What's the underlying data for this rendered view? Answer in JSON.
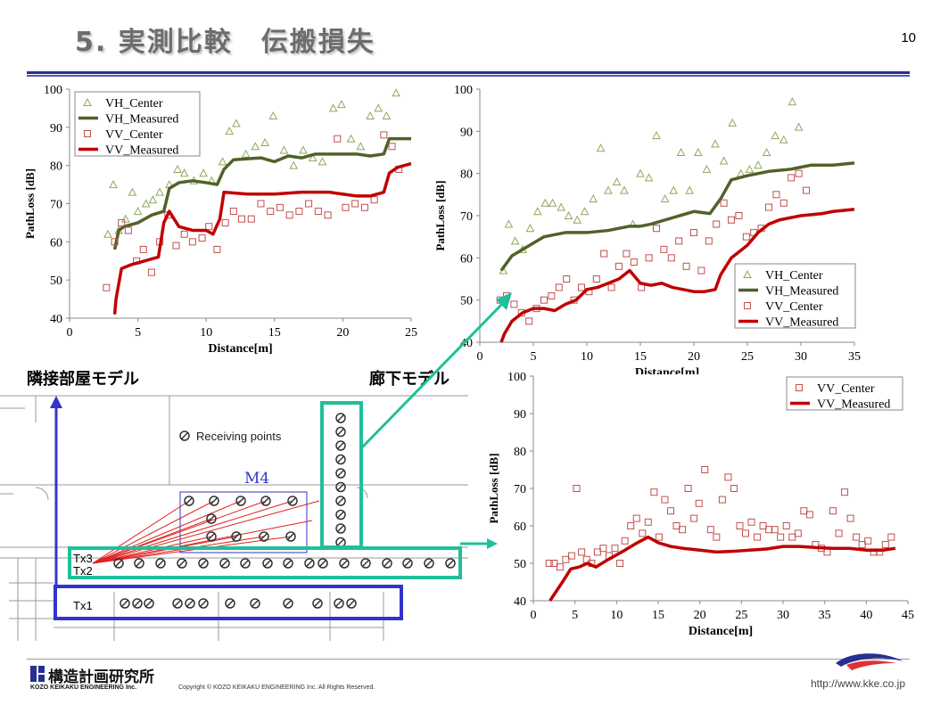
{
  "slide": {
    "title": "5. 実測比較　伝搬損失",
    "page_number": "10",
    "label_adjacent_room": "隣接部屋モデル",
    "label_corridor": "廊下モデル",
    "logo_jp": "構造計画研究所",
    "logo_en": "KOZO KEIKAKU ENGINEERING Inc.",
    "copyright": "Copyright © KOZO KEIKAKU ENGINEERING Inc. All Rights Reserved.",
    "url": "http://www.kke.co.jp",
    "brand_color": "#26308f"
  },
  "floorplan": {
    "legend_label": "Receiving points",
    "room_label": "M4",
    "tx_labels": [
      "Tx3",
      "Tx2",
      "Tx1"
    ],
    "colors": {
      "adjacent_frame": "#3333cc",
      "corridor_frame": "#1fbf9a",
      "rays": "#e02020"
    }
  },
  "chart_data": [
    {
      "type": "scatter",
      "xlabel": "Distance[m]",
      "ylabel": "PathLoss [dB]",
      "xlim": [
        0,
        25
      ],
      "ylim": [
        40,
        100
      ],
      "xticks": [
        0,
        5,
        10,
        15,
        20,
        25
      ],
      "yticks": [
        40,
        50,
        60,
        70,
        80,
        90,
        100
      ],
      "legend_position": "top-left",
      "series": [
        {
          "name": "VH_Center",
          "kind": "scatter",
          "marker": "triangle",
          "color": "#8fa85a",
          "x": [
            2.8,
            3.2,
            3.6,
            4.1,
            4.6,
            5.0,
            5.6,
            6.1,
            6.6,
            7.3,
            7.9,
            8.4,
            9.1,
            9.8,
            10.4,
            11.2,
            11.7,
            12.2,
            12.9,
            13.6,
            14.3,
            14.9,
            15.7,
            16.4,
            17.1,
            17.8,
            18.5,
            19.3,
            19.9,
            20.6,
            21.3,
            22.0,
            22.6,
            23.2,
            23.9
          ],
          "y": [
            62,
            75,
            63,
            66,
            73,
            68,
            70,
            71,
            73,
            75,
            79,
            78,
            76,
            78,
            76,
            81,
            89,
            91,
            83,
            85,
            86,
            93,
            84,
            80,
            84,
            82,
            81,
            95,
            96,
            87,
            85,
            93,
            95,
            93,
            99
          ]
        },
        {
          "name": "VH_Measured",
          "kind": "line",
          "color": "#4f6228",
          "x": [
            3.3,
            3.6,
            4.0,
            5.0,
            6.0,
            6.9,
            7.3,
            8.0,
            9.0,
            10.0,
            10.8,
            11.3,
            12.0,
            14.0,
            15.0,
            16.0,
            17.0,
            18.0,
            19.0,
            20.0,
            21.0,
            22.0,
            23.0,
            23.4,
            24.0,
            25.0
          ],
          "y": [
            58,
            63,
            64,
            65,
            67,
            68,
            74,
            75.5,
            76,
            75.5,
            75,
            79,
            81.5,
            82,
            81,
            82.5,
            82,
            83,
            83,
            83,
            83,
            82.5,
            83,
            87,
            87,
            87
          ]
        },
        {
          "name": "VV_Center",
          "kind": "scatter",
          "marker": "square",
          "color": "#c0504d",
          "x": [
            2.7,
            3.3,
            3.8,
            4.3,
            4.9,
            5.4,
            6.0,
            6.6,
            7.2,
            7.8,
            8.4,
            9.0,
            9.7,
            10.2,
            10.8,
            11.4,
            12.0,
            12.6,
            13.3,
            14.0,
            14.7,
            15.4,
            16.1,
            16.8,
            17.5,
            18.2,
            18.9,
            19.6,
            20.2,
            20.9,
            21.6,
            22.3,
            23.0,
            23.6,
            24.1
          ],
          "y": [
            48,
            60,
            65,
            63,
            55,
            58,
            52,
            60,
            67,
            59,
            62,
            60,
            61,
            64,
            58,
            65,
            68,
            66,
            66,
            70,
            68,
            69,
            67,
            68,
            70,
            68,
            67,
            87,
            69,
            70,
            69,
            71,
            88,
            85,
            79
          ]
        },
        {
          "name": "VV_Measured",
          "kind": "line",
          "color": "#c00000",
          "x": [
            3.3,
            3.4,
            3.8,
            4.5,
            6.0,
            6.5,
            6.9,
            7.3,
            8.0,
            9.0,
            10.0,
            10.5,
            11.0,
            11.3,
            13.0,
            15.0,
            17.0,
            19.0,
            21.0,
            22.0,
            23.0,
            23.4,
            24.0,
            25.0
          ],
          "y": [
            41,
            45,
            53,
            54,
            55.5,
            56,
            65,
            68,
            64,
            63,
            63,
            62,
            66,
            73,
            72.5,
            72.5,
            73,
            73,
            72,
            72,
            73,
            78,
            79.5,
            80.5
          ]
        }
      ]
    },
    {
      "type": "scatter",
      "xlabel": "Distance[m]",
      "ylabel": "PathLoss [dB]",
      "xlim": [
        0,
        35
      ],
      "ylim": [
        40,
        100
      ],
      "xticks": [
        0,
        5,
        10,
        15,
        20,
        25,
        30,
        35
      ],
      "yticks": [
        40,
        50,
        60,
        70,
        80,
        90,
        100
      ],
      "legend_position": "bottom-right",
      "series": [
        {
          "name": "VH_Center",
          "kind": "scatter",
          "marker": "triangle",
          "color": "#8fa85a",
          "x": [
            2.2,
            2.7,
            3.3,
            4.0,
            4.7,
            5.4,
            6.1,
            6.8,
            7.6,
            8.3,
            9.1,
            9.8,
            10.6,
            11.3,
            12.0,
            12.8,
            13.5,
            14.3,
            15.0,
            15.8,
            16.5,
            17.3,
            18.1,
            18.8,
            19.6,
            20.4,
            21.2,
            22.0,
            22.8,
            23.6,
            24.4,
            25.2,
            26.0,
            26.8,
            27.6,
            28.4,
            29.2,
            29.8
          ],
          "y": [
            57,
            68,
            64,
            62,
            67,
            71,
            73,
            73,
            72,
            70,
            69,
            71,
            74,
            86,
            76,
            78,
            76,
            68,
            80,
            79,
            89,
            74,
            76,
            85,
            76,
            85,
            81,
            87,
            83,
            92,
            80,
            81,
            82,
            85,
            89,
            88,
            97,
            91
          ]
        },
        {
          "name": "VH_Measured",
          "kind": "line",
          "color": "#4f6228",
          "x": [
            2.0,
            3.0,
            4.0,
            5.0,
            6.0,
            8.0,
            10.0,
            12.0,
            14.0,
            15.0,
            16.0,
            18.0,
            20.0,
            21.5,
            22.5,
            23.5,
            25.0,
            27.0,
            29.0,
            31.0,
            33.0,
            35.0
          ],
          "y": [
            57,
            60.5,
            62,
            63.5,
            65,
            66,
            66,
            66.5,
            67.5,
            67.5,
            68,
            69.5,
            71,
            70.5,
            74,
            78.5,
            79.5,
            80.5,
            81,
            82,
            82,
            82.5
          ]
        },
        {
          "name": "VV_Center",
          "kind": "scatter",
          "marker": "square",
          "color": "#c0504d",
          "x": [
            1.9,
            2.5,
            3.2,
            3.9,
            4.6,
            5.3,
            6.0,
            6.7,
            7.4,
            8.1,
            8.8,
            9.5,
            10.2,
            10.9,
            11.6,
            12.3,
            13.0,
            13.7,
            14.4,
            15.1,
            15.8,
            16.5,
            17.2,
            17.9,
            18.6,
            19.3,
            20.0,
            20.7,
            21.4,
            22.1,
            22.8,
            23.5,
            24.2,
            24.9,
            25.6,
            26.3,
            27.0,
            27.7,
            28.4,
            29.1,
            29.8,
            30.5
          ],
          "y": [
            50,
            51,
            49,
            47,
            45,
            48,
            50,
            51,
            53,
            55,
            50,
            53,
            52,
            55,
            61,
            53,
            58,
            61,
            59,
            53,
            60,
            67,
            62,
            60,
            64,
            58,
            66,
            57,
            64,
            68,
            73,
            69,
            70,
            65,
            66,
            67,
            72,
            75,
            73,
            79,
            80,
            76
          ]
        },
        {
          "name": "VV_Measured",
          "kind": "line",
          "color": "#c00000",
          "x": [
            2.0,
            2.3,
            3.0,
            4.0,
            5.0,
            6.0,
            7.0,
            8.0,
            9.0,
            10.0,
            11.0,
            12.0,
            13.0,
            14.0,
            15.0,
            16.0,
            17.0,
            18.0,
            19.0,
            20.0,
            21.0,
            22.0,
            22.5,
            23.5,
            25.0,
            26.0,
            27.0,
            28.0,
            30.0,
            32.0,
            33.0,
            35.0
          ],
          "y": [
            40,
            42,
            45,
            47,
            48,
            48,
            47.5,
            49,
            50,
            52.5,
            53,
            54,
            55,
            57,
            54,
            53.5,
            54,
            53,
            52.5,
            52,
            52,
            52.5,
            56,
            60,
            63,
            66,
            68,
            69,
            70,
            70.5,
            71,
            71.5
          ]
        }
      ]
    },
    {
      "type": "scatter",
      "xlabel": "Distance[m]",
      "ylabel": "PathLoss [dB]",
      "xlim": [
        0,
        45
      ],
      "ylim": [
        40,
        100
      ],
      "xticks": [
        0,
        5,
        10,
        15,
        20,
        25,
        30,
        35,
        40,
        45
      ],
      "yticks": [
        40,
        50,
        60,
        70,
        80,
        90,
        100
      ],
      "legend_position": "top-right",
      "series": [
        {
          "name": "VV_Center",
          "kind": "scatter",
          "marker": "square",
          "color": "#c0504d",
          "x": [
            1.9,
            2.5,
            3.2,
            3.9,
            4.6,
            5.2,
            5.8,
            6.4,
            7.0,
            7.7,
            8.4,
            9.1,
            9.8,
            10.4,
            11.0,
            11.7,
            12.4,
            13.1,
            13.8,
            14.5,
            15.1,
            15.8,
            16.5,
            17.2,
            17.9,
            18.6,
            19.3,
            19.9,
            20.6,
            21.3,
            22.0,
            22.7,
            23.4,
            24.1,
            24.8,
            25.5,
            26.2,
            26.9,
            27.6,
            28.3,
            29.0,
            29.7,
            30.4,
            31.1,
            31.8,
            32.5,
            33.2,
            33.9,
            34.6,
            35.3,
            36.0,
            36.7,
            37.4,
            38.1,
            38.8,
            39.5,
            40.2,
            40.9,
            41.6,
            42.3,
            43.0
          ],
          "y": [
            50,
            50,
            49,
            51,
            52,
            70,
            53,
            51,
            50,
            53,
            54,
            52,
            54,
            50,
            56,
            60,
            62,
            58,
            61,
            69,
            57,
            67,
            64,
            60,
            59,
            70,
            62,
            66,
            75,
            59,
            57,
            67,
            73,
            70,
            60,
            58,
            61,
            57,
            60,
            59,
            59,
            57,
            60,
            57,
            58,
            64,
            63,
            55,
            54,
            53,
            64,
            58,
            69,
            62,
            57,
            55,
            56,
            53,
            53,
            55,
            57
          ]
        },
        {
          "name": "VV_Measured",
          "kind": "line",
          "color": "#c00000",
          "x": [
            2.0,
            3.5,
            4.5,
            5.5,
            6.5,
            7.5,
            9.0,
            11.0,
            12.5,
            13.8,
            15.0,
            16.5,
            18.0,
            20.0,
            22.0,
            24.0,
            26.0,
            28.0,
            30.0,
            32.0,
            34.0,
            36.0,
            38.0,
            40.0,
            42.0,
            43.5
          ],
          "y": [
            40,
            45,
            48.5,
            49,
            50,
            49,
            51,
            53.5,
            55.5,
            57,
            55.5,
            54.5,
            54,
            53.5,
            53,
            53.2,
            53.5,
            53.8,
            54.5,
            54.5,
            54.2,
            54,
            54,
            53.5,
            53.5,
            54
          ]
        }
      ]
    }
  ]
}
